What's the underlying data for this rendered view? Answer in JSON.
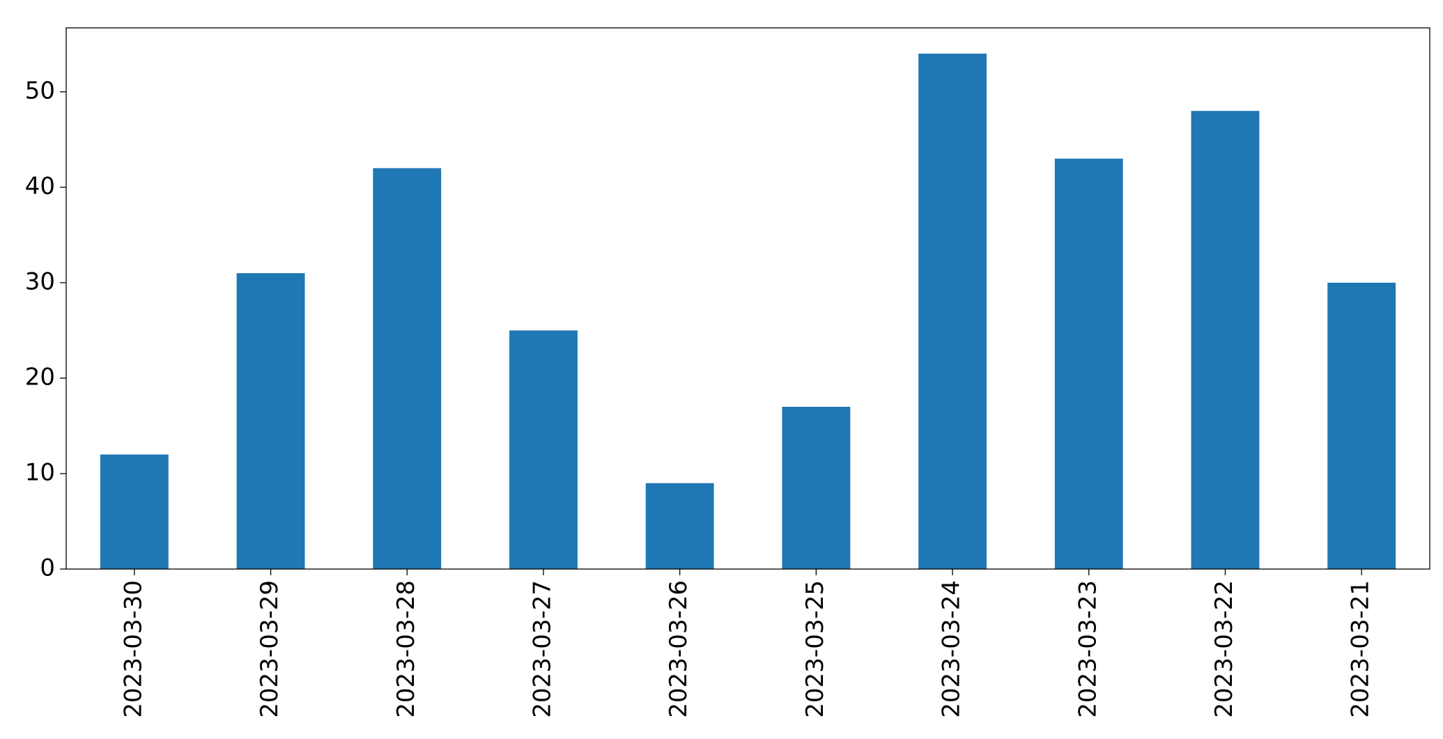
{
  "chart_data": {
    "type": "bar",
    "categories": [
      "2023-03-30",
      "2023-03-29",
      "2023-03-28",
      "2023-03-27",
      "2023-03-26",
      "2023-03-25",
      "2023-03-24",
      "2023-03-23",
      "2023-03-22",
      "2023-03-21"
    ],
    "values": [
      12,
      31,
      42,
      25,
      9,
      17,
      54,
      43,
      48,
      30
    ],
    "color": "#1f77b4",
    "ylim": [
      0,
      56.7
    ],
    "yticks": [
      0,
      10,
      20,
      30,
      40,
      50
    ],
    "grid": false
  }
}
